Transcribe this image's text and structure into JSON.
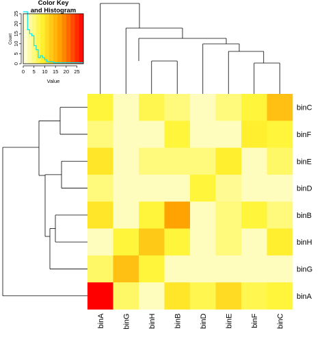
{
  "chart_data": [
    {
      "type": "heatmap",
      "columns": [
        "binA",
        "binG",
        "binH",
        "binB",
        "binD",
        "binE",
        "binF",
        "binC"
      ],
      "rows": [
        "binC",
        "binF",
        "binE",
        "binD",
        "binB",
        "binH",
        "binG",
        "binA"
      ],
      "values": [
        [
          8,
          2,
          7,
          5,
          2,
          5,
          8,
          14
        ],
        [
          5,
          2,
          2,
          8,
          2,
          2,
          9,
          8
        ],
        [
          10,
          2,
          5,
          5,
          5,
          9,
          2,
          6
        ],
        [
          5,
          2,
          2,
          2,
          8,
          4,
          2,
          2
        ],
        [
          10,
          2,
          8,
          17,
          2,
          5,
          8,
          5
        ],
        [
          2,
          8,
          13,
          8,
          2,
          5,
          2,
          9
        ],
        [
          6,
          14,
          8,
          2,
          2,
          2,
          2,
          2
        ],
        [
          28,
          6,
          2,
          10,
          7,
          11,
          7,
          8
        ]
      ],
      "color_scale": "heat",
      "value_range": [
        0,
        28
      ],
      "column_dendrogram": true,
      "row_dendrogram": true
    },
    {
      "type": "line",
      "title": "Color Key\nand Histogram",
      "xlabel": "Value",
      "ylabel": "Count",
      "x_ticks": [
        0,
        5,
        10,
        15,
        20,
        25
      ],
      "y_ticks": [
        0,
        5,
        10,
        15,
        20,
        25
      ],
      "xlim": [
        0,
        28
      ],
      "ylim": [
        0,
        25
      ],
      "series": [
        {
          "x": [
            0,
            2,
            2,
            3,
            3,
            4,
            4,
            5,
            5,
            6,
            6,
            7,
            7,
            8,
            8,
            9,
            9,
            10,
            10,
            11,
            11,
            14,
            14,
            28
          ],
          "y": [
            26,
            26,
            17,
            17,
            15,
            15,
            14,
            14,
            9,
            9,
            7,
            7,
            3,
            3,
            4,
            4,
            3,
            3,
            2,
            2,
            1,
            1,
            0.5,
            0.5
          ]
        }
      ],
      "line_color": "#00e5ee",
      "color_gradient": [
        "#ffffff",
        "#ffff66",
        "#ffcc00",
        "#ff6600",
        "#ff0000"
      ]
    }
  ]
}
